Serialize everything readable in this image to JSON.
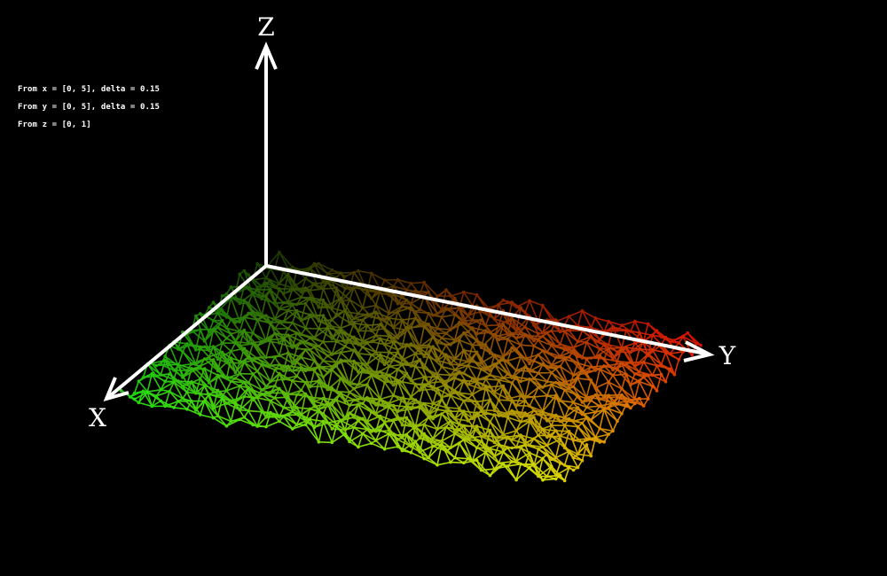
{
  "info": {
    "line_x": "From x = [0, 5], delta = 0.15",
    "line_y": "From y = [0, 5], delta = 0.15",
    "line_z": "From z = [0, 1]"
  },
  "axes": {
    "x_label": "X",
    "y_label": "Y",
    "z_label": "Z"
  },
  "colors": {
    "background": "#000000",
    "axis": "#ffffff",
    "gradient_x_origin_y_origin": "#1a3a00",
    "gradient_x_max": "#22dd11",
    "gradient_y_max": "#dd1100",
    "gradient_xy_max": "#dddd00"
  },
  "chart_data": {
    "type": "surface-wireframe",
    "x_range": [
      0,
      5
    ],
    "y_range": [
      0,
      5
    ],
    "z_range": [
      0,
      1
    ],
    "delta": 0.15,
    "xlabel": "X",
    "ylabel": "Y",
    "zlabel": "Z"
  }
}
